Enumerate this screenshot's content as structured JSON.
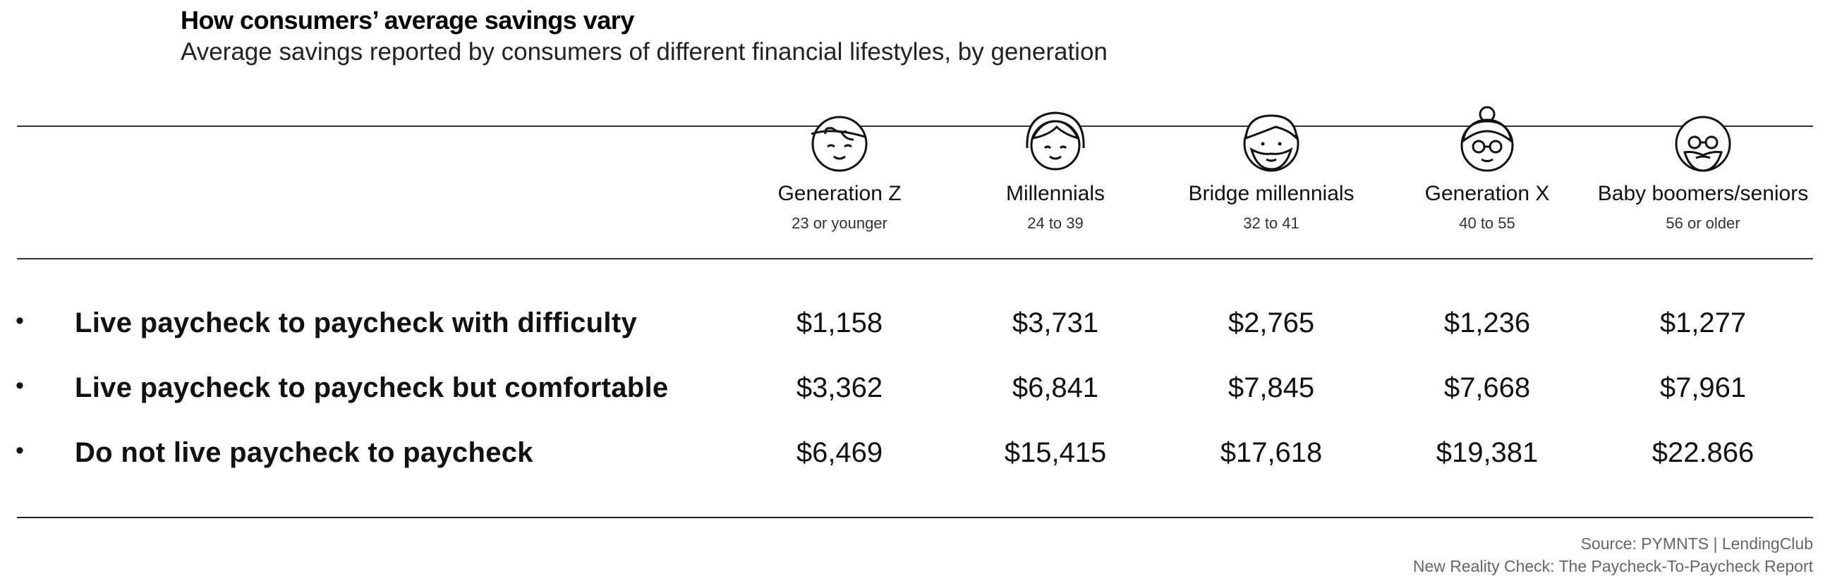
{
  "title": "How consumers’ average savings vary",
  "subtitle": "Average savings reported by consumers of different financial lifestyles, by generation",
  "chart_data": {
    "type": "table",
    "columns": [
      {
        "name": "Generation Z",
        "age": "23 or younger",
        "icon": "gen-z-face-icon"
      },
      {
        "name": "Millennials",
        "age": "24 to 39",
        "icon": "millennial-face-icon"
      },
      {
        "name": "Bridge millennials",
        "age": "32 to 41",
        "icon": "bridge-millennial-face-icon"
      },
      {
        "name": "Generation X",
        "age": "40 to 55",
        "icon": "gen-x-face-icon"
      },
      {
        "name": "Baby boomers/seniors",
        "age": "56 or older",
        "icon": "boomer-face-icon"
      }
    ],
    "rows": [
      {
        "label": "Live paycheck to paycheck with difficulty",
        "values": [
          "$1,158",
          "$3,731",
          "$2,765",
          "$1,236",
          "$1,277"
        ]
      },
      {
        "label": "Live paycheck to paycheck but comfortable",
        "values": [
          "$3,362",
          "$6,841",
          "$7,845",
          "$7,668",
          "$7,961"
        ]
      },
      {
        "label": "Do not live paycheck to paycheck",
        "values": [
          "$6,469",
          "$15,415",
          "$17,618",
          "$19,381",
          "$22.866"
        ]
      }
    ]
  },
  "bullet": "•",
  "source_line1": "Source: PYMNTS  |  LendingClub",
  "source_line2": "New Reality Check: The Paycheck-To-Paycheck Report"
}
